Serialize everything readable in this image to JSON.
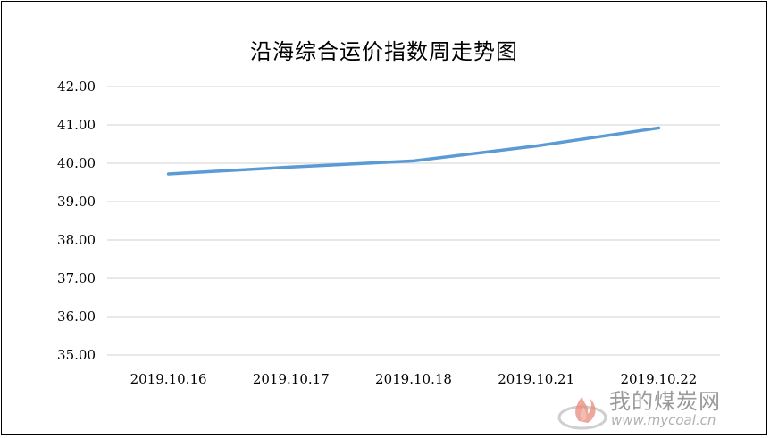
{
  "chart_data": {
    "type": "line",
    "title": "沿海综合运价指数周走势图",
    "categories": [
      "2019.10.16",
      "2019.10.17",
      "2019.10.18",
      "2019.10.21",
      "2019.10.22"
    ],
    "series": [
      {
        "values": [
          39.72,
          39.9,
          40.06,
          40.45,
          40.92
        ]
      }
    ],
    "yticks": [
      "35.00",
      "36.00",
      "37.00",
      "38.00",
      "39.00",
      "40.00",
      "41.00",
      "42.00"
    ],
    "ylim": [
      35,
      42
    ],
    "grid": true,
    "line_color": "#5B9BD5",
    "grid_color": "#D9D9D9"
  },
  "watermark": {
    "name": "我的煤炭网",
    "url": "www.mycoal.cn",
    "logo_icon": "flame-logo-icon"
  }
}
